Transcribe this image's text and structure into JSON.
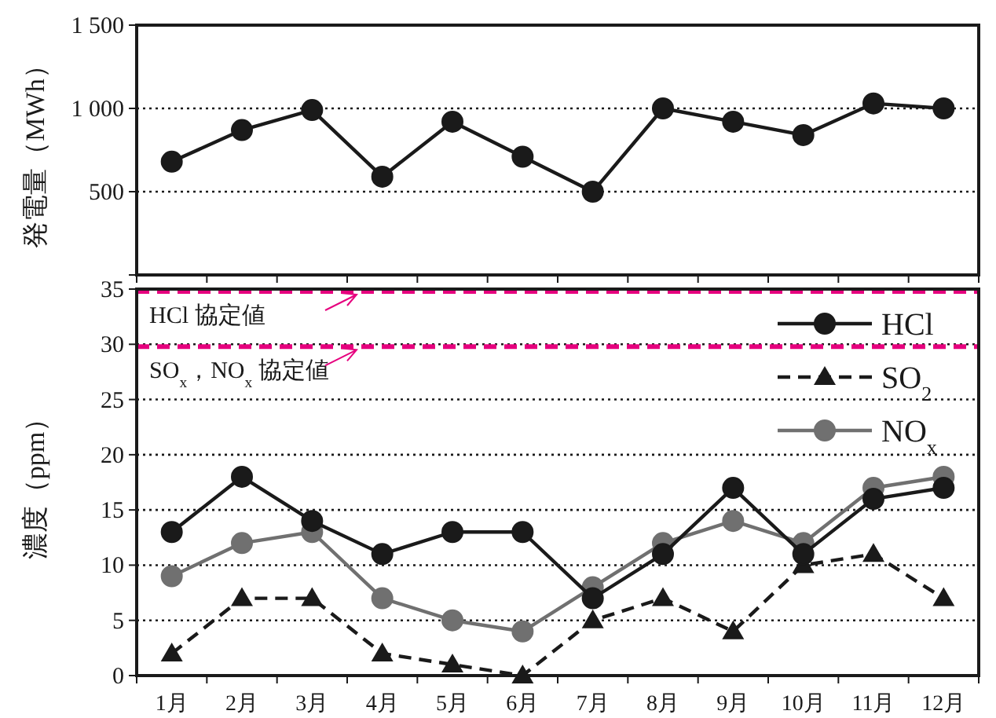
{
  "chart_data": [
    {
      "type": "line",
      "ylabel": "発電量（MWh）",
      "categories": [
        null,
        null,
        null,
        null,
        null,
        null,
        null,
        null,
        null,
        null,
        null,
        null
      ],
      "series": [
        {
          "color": "#1a1a1a",
          "marker": "circle",
          "values": [
            680,
            870,
            990,
            590,
            920,
            710,
            500,
            1000,
            920,
            840,
            1030,
            1000
          ]
        }
      ],
      "ylim": [
        0,
        1500
      ],
      "yticks": [
        {
          "value": 0,
          "label": null
        },
        500,
        {
          "value": 1000,
          "label": "1 000"
        },
        {
          "value": 1500,
          "label": "1 500"
        }
      ],
      "grid": "y",
      "tick_labels": "y",
      "line_style": "solid"
    },
    {
      "type": "line",
      "ylabel": "濃度（ppm）",
      "categories": [
        "1月",
        "2月",
        "3月",
        "4月",
        "5月",
        "6月",
        "7月",
        "8月",
        "9月",
        "10月",
        "11月",
        "12月"
      ],
      "series": [
        {
          "name": "HCl",
          "color": "#1a1a1a",
          "marker": "circle",
          "line_style": "solid",
          "values": [
            13,
            18,
            14,
            11,
            13,
            13,
            7,
            11,
            17,
            11,
            16,
            17
          ]
        },
        {
          "name": "SO$_{2}$",
          "color": "#1a1a1a",
          "marker": "triangle",
          "line_style": "dashed",
          "values": [
            2,
            7,
            7,
            2,
            1,
            0,
            5,
            7,
            4,
            10,
            11,
            7
          ]
        },
        {
          "name": "NO$_{x}$",
          "color": "#707070",
          "marker": "circle",
          "line_style": "solid",
          "values": [
            9,
            12,
            13,
            7,
            5,
            4,
            8,
            12,
            14,
            12,
            17,
            18
          ]
        }
      ],
      "ylim": [
        0,
        35
      ],
      "yticks": [
        0,
        5,
        10,
        15,
        20,
        25,
        30,
        35
      ],
      "grid": "y",
      "legend": "top right",
      "ref_lines": [
        {
          "axis": "y",
          "value": 35,
          "label": "HCl 協定値",
          "color": "#e6007e",
          "line_style": "dashed"
        },
        {
          "axis": "y",
          "value": 30,
          "label": "SO$_{x}$，NO$_{x}$ 協定値",
          "color": "#e6007e",
          "line_style": "dashed"
        }
      ]
    }
  ]
}
